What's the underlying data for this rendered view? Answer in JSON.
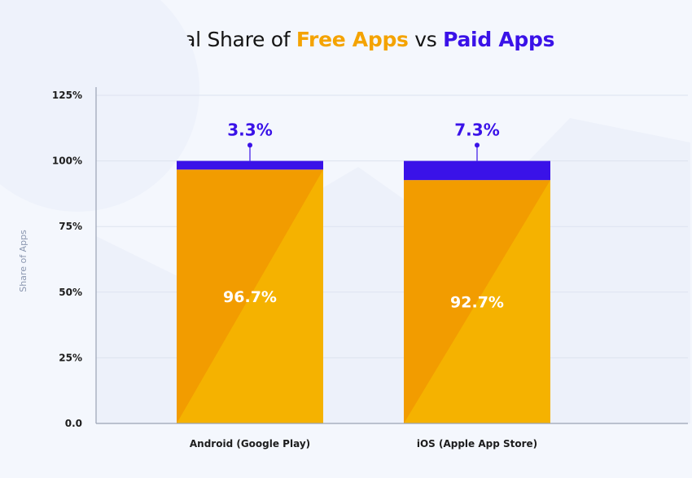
{
  "title": {
    "part1": "Global Share of ",
    "free": "Free Apps",
    "part2": " vs ",
    "paid": "Paid Apps"
  },
  "colors": {
    "free_dark": "#f29c00",
    "free_light": "#f5b200",
    "paid": "#3a12e8",
    "grid": "#dde3ef",
    "axis": "#9aa3b5"
  },
  "chart_data": {
    "type": "bar",
    "stacked": true,
    "categories": [
      "Android (Google Play)",
      "iOS (Apple App Store)"
    ],
    "series": [
      {
        "name": "Free Apps",
        "values": [
          96.7,
          92.7
        ],
        "labels": [
          "96.7%",
          "92.7%"
        ]
      },
      {
        "name": "Paid Apps",
        "values": [
          3.3,
          7.3
        ],
        "labels": [
          "3.3%",
          "7.3%"
        ]
      }
    ],
    "title": "Global Share of Free Apps vs Paid Apps",
    "xlabel": "",
    "ylabel": "Share of Apps",
    "ylim": [
      0,
      125
    ],
    "yticks": [
      0,
      25,
      50,
      75,
      100,
      125
    ],
    "ytick_labels": [
      "0.0",
      "25%",
      "50%",
      "75%",
      "100%",
      "125%"
    ],
    "grid": true,
    "legend": "none"
  }
}
